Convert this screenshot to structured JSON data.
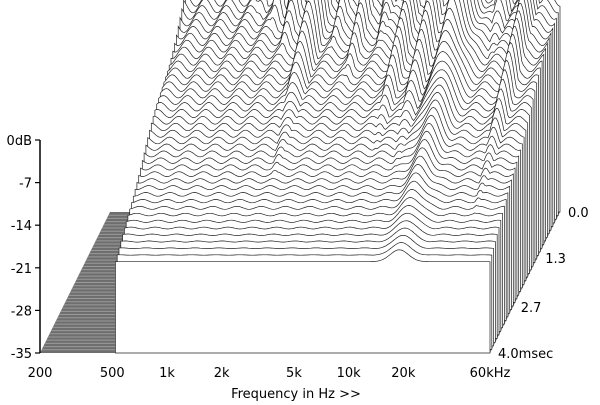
{
  "chart_data": {
    "type": "waterfall",
    "xlabel": "Frequency in Hz >>",
    "x_scale": "log",
    "x_ticks": [
      {
        "label": "200",
        "value": 200
      },
      {
        "label": "500",
        "value": 500
      },
      {
        "label": "1k",
        "value": 1000
      },
      {
        "label": "2k",
        "value": 2000
      },
      {
        "label": "5k",
        "value": 5000
      },
      {
        "label": "10k",
        "value": 10000
      },
      {
        "label": "20k",
        "value": 20000
      },
      {
        "label": "60kHz",
        "value": 60000
      }
    ],
    "xlim": [
      200,
      60000
    ],
    "y_ticks": [
      {
        "label": "0dB",
        "value": 0
      },
      {
        "label": "-7",
        "value": -7
      },
      {
        "label": "-14",
        "value": -14
      },
      {
        "label": "-21",
        "value": -21
      },
      {
        "label": "-28",
        "value": -28
      },
      {
        "label": "-35",
        "value": -35
      }
    ],
    "ylim": [
      -35,
      0
    ],
    "z_ticks": [
      {
        "label": "0.0",
        "value": 0.0
      },
      {
        "label": "1.3",
        "value": 1.3
      },
      {
        "label": "2.7",
        "value": 2.7
      },
      {
        "label": "4.0msec",
        "value": 4.0
      }
    ],
    "zlim": [
      0,
      4.0
    ],
    "slices": 40,
    "peaks": [
      {
        "freq": 1150,
        "db": -4,
        "width": 0.1
      },
      {
        "freq": 1400,
        "db": 0,
        "width": 0.07
      },
      {
        "freq": 1750,
        "db": 2,
        "width": 0.07
      },
      {
        "freq": 2150,
        "db": 5,
        "width": 0.07
      },
      {
        "freq": 2900,
        "db": 8,
        "width": 0.07
      },
      {
        "freq": 4000,
        "db": 3,
        "width": 0.07
      },
      {
        "freq": 5300,
        "db": 6,
        "width": 0.06
      },
      {
        "freq": 7000,
        "db": 4,
        "width": 0.06
      },
      {
        "freq": 9500,
        "db": 7,
        "width": 0.06
      },
      {
        "freq": 13000,
        "db": 9,
        "width": 0.06
      },
      {
        "freq": 19000,
        "db": 14,
        "width": 0.07
      },
      {
        "freq": 30000,
        "db": 5,
        "width": 0.06
      },
      {
        "freq": 42000,
        "db": 9,
        "width": 0.05
      }
    ],
    "colors": {
      "floor": "#6e6e6e",
      "floor_line": "#9a9a9a",
      "fill": "#ffffff",
      "stroke": "#222222"
    }
  }
}
